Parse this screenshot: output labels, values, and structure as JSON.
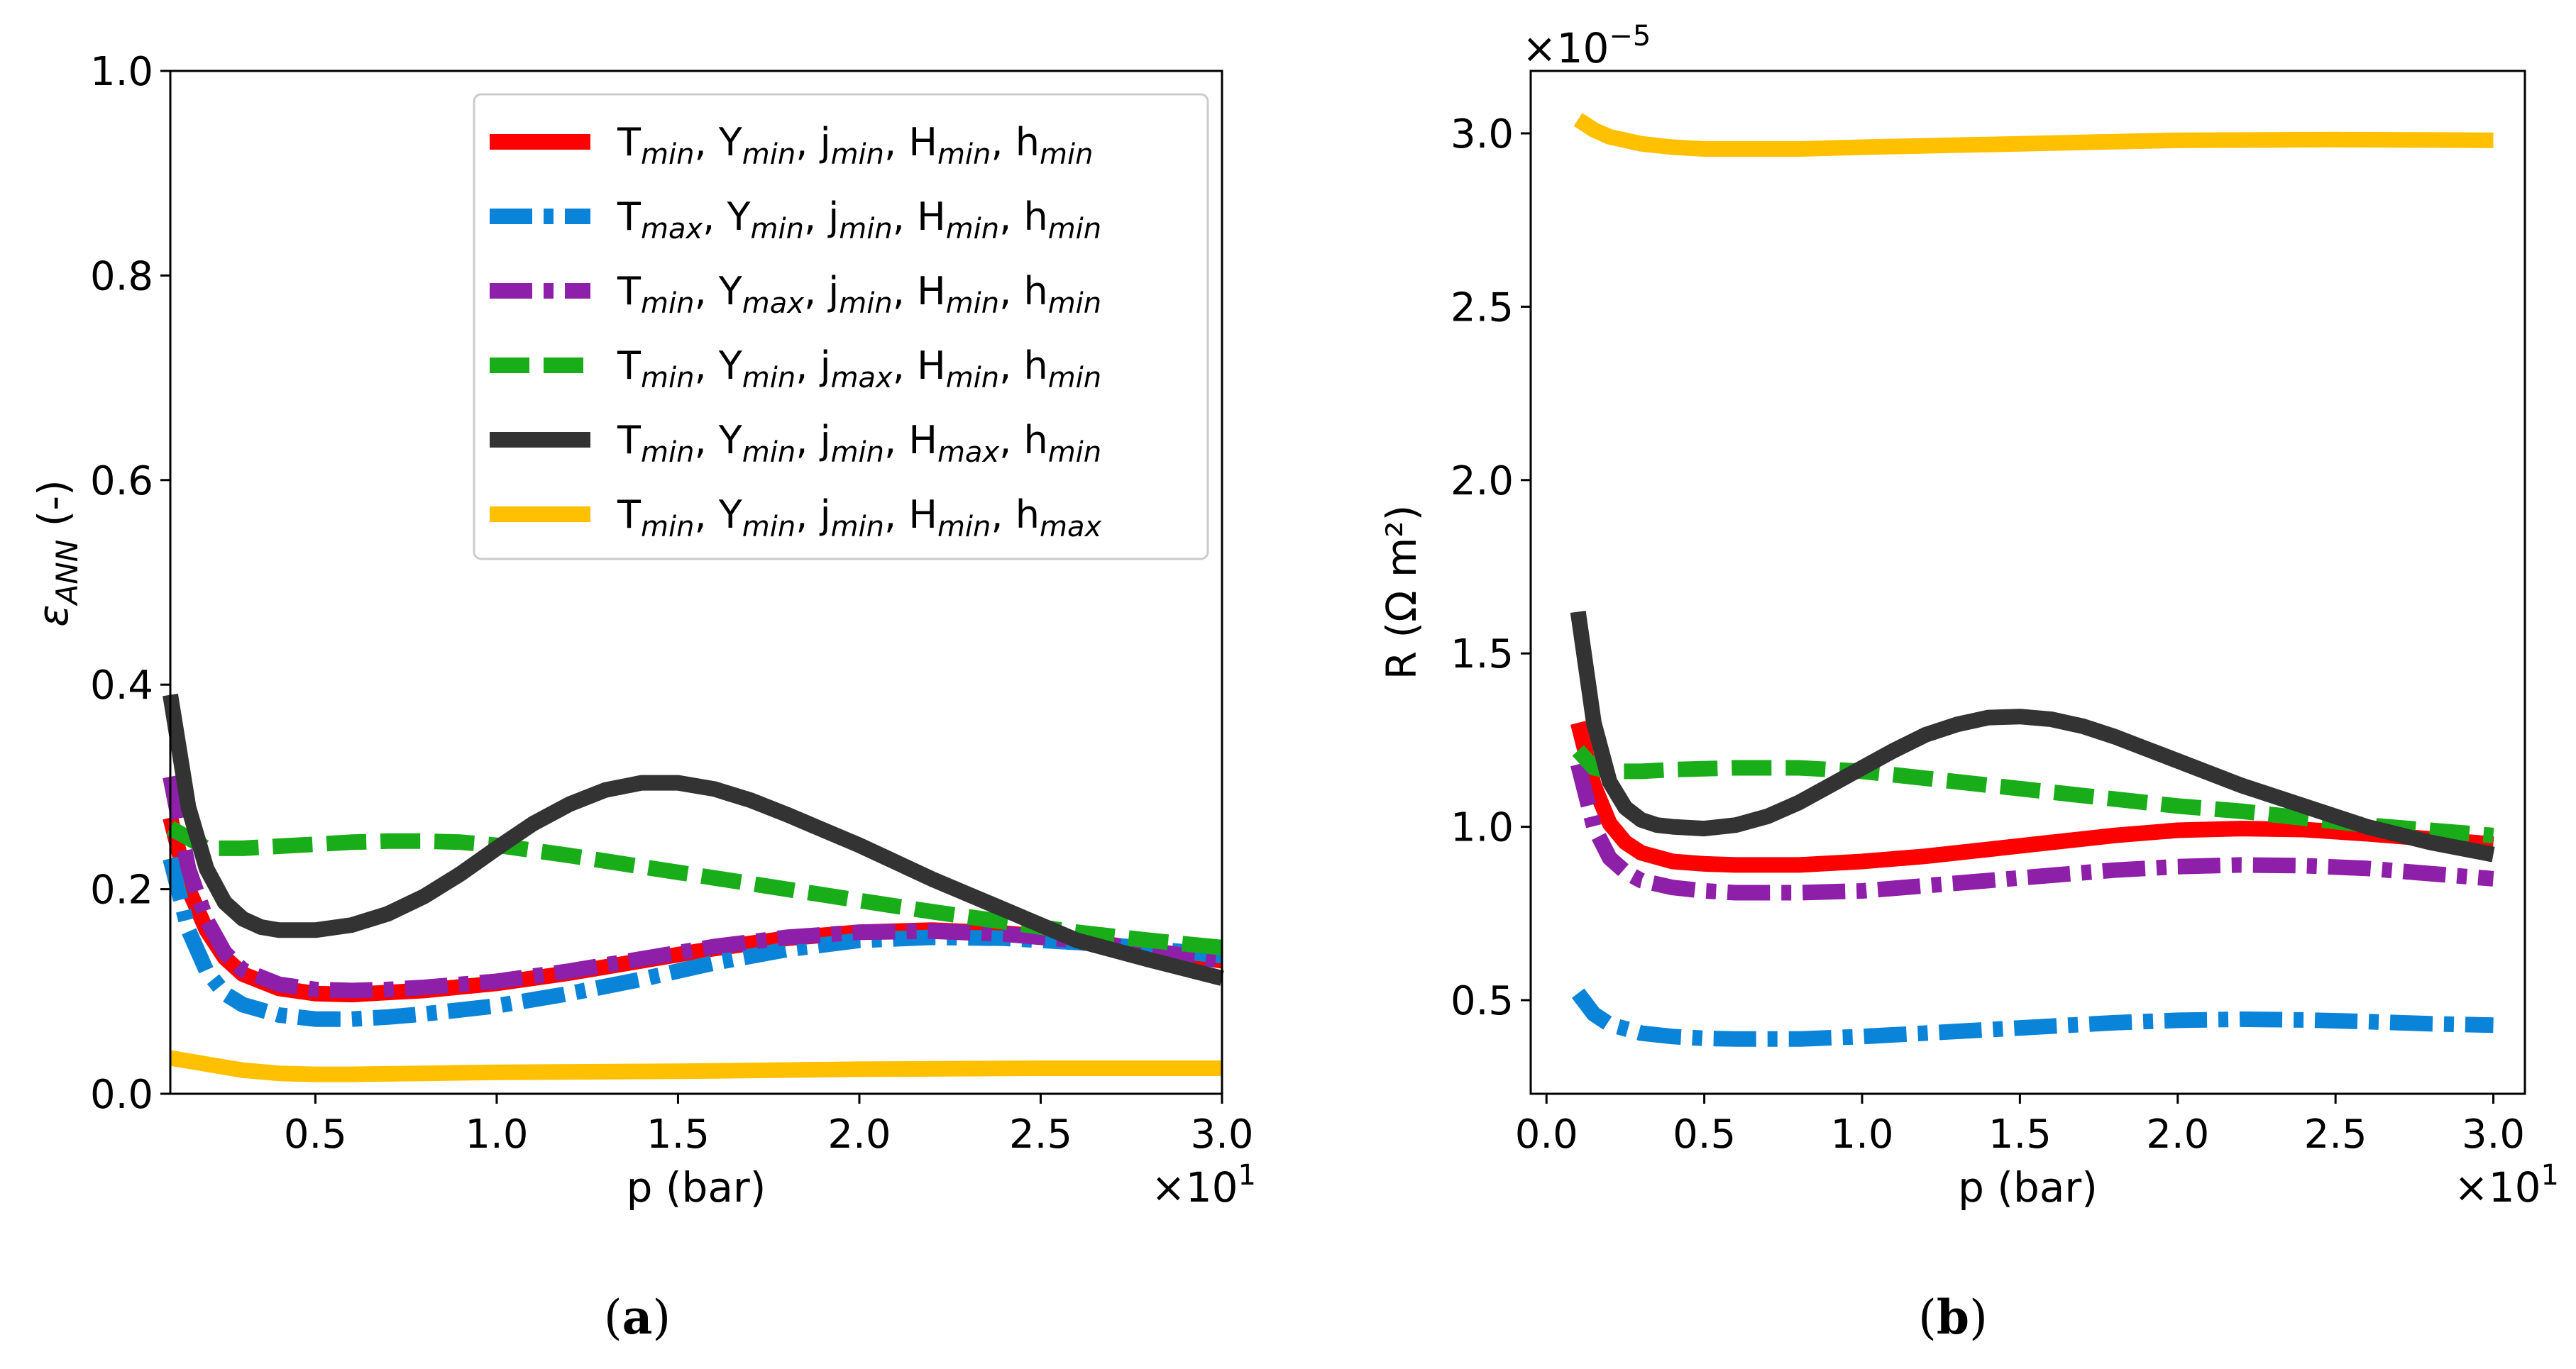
{
  "colors": {
    "red": "#ff0000",
    "blue": "#0a84d8",
    "purple": "#8e1fa8",
    "green": "#1aad1a",
    "black": "#333333",
    "yellow": "#ffc000"
  },
  "legend": [
    {
      "parts": [
        [
          "T",
          "min"
        ],
        [
          "Y",
          "min"
        ],
        [
          "j",
          "min"
        ],
        [
          "H",
          "min"
        ],
        [
          "h",
          "min"
        ]
      ],
      "color": "red",
      "style": "solid"
    },
    {
      "parts": [
        [
          "T",
          "max"
        ],
        [
          "Y",
          "min"
        ],
        [
          "j",
          "min"
        ],
        [
          "H",
          "min"
        ],
        [
          "h",
          "min"
        ]
      ],
      "color": "blue",
      "style": "dashdot"
    },
    {
      "parts": [
        [
          "T",
          "min"
        ],
        [
          "Y",
          "max"
        ],
        [
          "j",
          "min"
        ],
        [
          "H",
          "min"
        ],
        [
          "h",
          "min"
        ]
      ],
      "color": "purple",
      "style": "dashdot"
    },
    {
      "parts": [
        [
          "T",
          "min"
        ],
        [
          "Y",
          "min"
        ],
        [
          "j",
          "max"
        ],
        [
          "H",
          "min"
        ],
        [
          "h",
          "min"
        ]
      ],
      "color": "green",
      "style": "dashed"
    },
    {
      "parts": [
        [
          "T",
          "min"
        ],
        [
          "Y",
          "min"
        ],
        [
          "j",
          "min"
        ],
        [
          "H",
          "max"
        ],
        [
          "h",
          "min"
        ]
      ],
      "color": "black",
      "style": "solid"
    },
    {
      "parts": [
        [
          "T",
          "min"
        ],
        [
          "Y",
          "min"
        ],
        [
          "j",
          "min"
        ],
        [
          "H",
          "min"
        ],
        [
          "h",
          "max"
        ]
      ],
      "color": "yellow",
      "style": "solid"
    }
  ],
  "chart_data": [
    {
      "type": "line",
      "caption": "a",
      "xlabel": "p (bar)",
      "ylabel_main": "ε",
      "ylabel_sub": "ANN",
      "ylabel_suffix": " (-)",
      "x_multiplier": "×10",
      "x_multiplier_exp": "1",
      "xlim": [
        0.1,
        3.0
      ],
      "ylim": [
        0,
        1.0
      ],
      "xticks": [
        0.5,
        1.0,
        1.5,
        2.0,
        2.5,
        3.0
      ],
      "xtick_labels": [
        "0.5",
        "1.0",
        "1.5",
        "2.0",
        "2.5",
        "3.0"
      ],
      "yticks": [
        0.0,
        0.2,
        0.4,
        0.6,
        0.8,
        1.0
      ],
      "ytick_labels": [
        "0.0",
        "0.2",
        "0.4",
        "0.6",
        "0.8",
        "1.0"
      ],
      "legend_position": "top-right",
      "series": [
        {
          "name": "Tmin, Ymin, jmin, Hmin, hmin",
          "x": [
            0.1,
            0.15,
            0.2,
            0.25,
            0.3,
            0.4,
            0.5,
            0.6,
            0.7,
            0.8,
            1.0,
            1.2,
            1.4,
            1.6,
            1.8,
            2.0,
            2.2,
            2.4,
            2.6,
            2.8,
            3.0
          ],
          "values": [
            0.27,
            0.2,
            0.16,
            0.133,
            0.117,
            0.103,
            0.098,
            0.097,
            0.099,
            0.101,
            0.108,
            0.118,
            0.13,
            0.142,
            0.152,
            0.158,
            0.16,
            0.157,
            0.151,
            0.14,
            0.13
          ]
        },
        {
          "name": "Tmax, Ymin, jmin, Hmin, hmin",
          "x": [
            0.1,
            0.15,
            0.2,
            0.25,
            0.3,
            0.4,
            0.5,
            0.6,
            0.7,
            0.8,
            1.0,
            1.2,
            1.4,
            1.6,
            1.8,
            2.0,
            2.2,
            2.4,
            2.6,
            2.8,
            3.0
          ],
          "values": [
            0.23,
            0.16,
            0.12,
            0.098,
            0.087,
            0.077,
            0.073,
            0.073,
            0.075,
            0.078,
            0.086,
            0.098,
            0.112,
            0.128,
            0.141,
            0.15,
            0.153,
            0.152,
            0.148,
            0.142,
            0.135
          ]
        },
        {
          "name": "Tmin, Ymax, jmin, Hmin, hmin",
          "x": [
            0.1,
            0.15,
            0.2,
            0.25,
            0.3,
            0.4,
            0.5,
            0.6,
            0.7,
            0.8,
            1.0,
            1.2,
            1.4,
            1.6,
            1.8,
            2.0,
            2.2,
            2.4,
            2.6,
            2.8,
            3.0
          ],
          "values": [
            0.31,
            0.22,
            0.17,
            0.138,
            0.121,
            0.107,
            0.102,
            0.101,
            0.102,
            0.104,
            0.11,
            0.12,
            0.132,
            0.144,
            0.153,
            0.158,
            0.159,
            0.156,
            0.15,
            0.14,
            0.13
          ]
        },
        {
          "name": "Tmin, Ymin, jmax, Hmin, hmin",
          "x": [
            0.1,
            0.2,
            0.3,
            0.4,
            0.5,
            0.6,
            0.7,
            0.8,
            0.9,
            1.0,
            1.2,
            1.4,
            1.6,
            1.8,
            2.0,
            2.2,
            2.4,
            2.6,
            2.8,
            3.0
          ],
          "values": [
            0.26,
            0.24,
            0.24,
            0.242,
            0.244,
            0.246,
            0.247,
            0.247,
            0.246,
            0.243,
            0.233,
            0.222,
            0.211,
            0.2,
            0.189,
            0.178,
            0.168,
            0.158,
            0.15,
            0.143
          ]
        },
        {
          "name": "Tmin, Ymin, jmin, Hmax, hmin",
          "x": [
            0.1,
            0.15,
            0.2,
            0.25,
            0.3,
            0.35,
            0.4,
            0.5,
            0.6,
            0.7,
            0.8,
            0.9,
            1.0,
            1.1,
            1.2,
            1.3,
            1.4,
            1.5,
            1.6,
            1.7,
            1.8,
            1.9,
            2.0,
            2.2,
            2.4,
            2.6,
            2.8,
            3.0
          ],
          "values": [
            0.39,
            0.28,
            0.22,
            0.187,
            0.171,
            0.163,
            0.16,
            0.16,
            0.165,
            0.176,
            0.193,
            0.215,
            0.24,
            0.264,
            0.283,
            0.297,
            0.304,
            0.304,
            0.298,
            0.287,
            0.273,
            0.258,
            0.243,
            0.21,
            0.18,
            0.15,
            0.131,
            0.113
          ]
        },
        {
          "name": "Tmin, Ymin, jmin, Hmin, hmax",
          "x": [
            0.1,
            0.2,
            0.3,
            0.4,
            0.5,
            0.6,
            0.8,
            1.0,
            1.5,
            2.0,
            2.5,
            3.0
          ],
          "values": [
            0.035,
            0.029,
            0.023,
            0.02,
            0.019,
            0.019,
            0.02,
            0.021,
            0.022,
            0.024,
            0.025,
            0.025
          ]
        }
      ]
    },
    {
      "type": "line",
      "caption": "b",
      "xlabel": "p (bar)",
      "ylabel": "R (Ω m²)",
      "x_multiplier": "×10",
      "x_multiplier_exp": "1",
      "y_multiplier": "×10",
      "y_multiplier_exp": "−5",
      "xlim": [
        -0.05,
        3.1
      ],
      "ylim": [
        0.23,
        3.18
      ],
      "xticks": [
        0.0,
        0.5,
        1.0,
        1.5,
        2.0,
        2.5,
        3.0
      ],
      "xtick_labels": [
        "0.0",
        "0.5",
        "1.0",
        "1.5",
        "2.0",
        "2.5",
        "3.0"
      ],
      "yticks": [
        0.5,
        1.0,
        1.5,
        2.0,
        2.5,
        3.0
      ],
      "ytick_labels": [
        "0.5",
        "1.0",
        "1.5",
        "2.0",
        "2.5",
        "3.0"
      ],
      "series": [
        {
          "name": "Tmin, Ymin, jmin, Hmin, hmin",
          "x": [
            0.1,
            0.15,
            0.2,
            0.25,
            0.3,
            0.4,
            0.5,
            0.6,
            0.8,
            1.0,
            1.2,
            1.4,
            1.6,
            1.8,
            2.0,
            2.2,
            2.4,
            2.6,
            2.8,
            3.0
          ],
          "values": [
            1.3,
            1.12,
            1.01,
            0.955,
            0.925,
            0.9,
            0.893,
            0.89,
            0.89,
            0.9,
            0.915,
            0.935,
            0.955,
            0.975,
            0.99,
            0.995,
            0.992,
            0.98,
            0.965,
            0.95
          ]
        },
        {
          "name": "Tmax, Ymin, jmin, Hmin, hmin",
          "x": [
            0.1,
            0.15,
            0.2,
            0.3,
            0.4,
            0.5,
            0.6,
            0.8,
            1.0,
            1.2,
            1.4,
            1.6,
            1.8,
            2.0,
            2.2,
            2.4,
            2.6,
            2.8,
            3.0
          ],
          "values": [
            0.52,
            0.46,
            0.43,
            0.405,
            0.395,
            0.39,
            0.388,
            0.388,
            0.395,
            0.405,
            0.415,
            0.425,
            0.435,
            0.442,
            0.445,
            0.443,
            0.438,
            0.432,
            0.428
          ]
        },
        {
          "name": "Tmin, Ymax, jmin, Hmin, hmin",
          "x": [
            0.1,
            0.15,
            0.2,
            0.25,
            0.3,
            0.4,
            0.5,
            0.6,
            0.8,
            1.0,
            1.2,
            1.4,
            1.6,
            1.8,
            2.0,
            2.2,
            2.4,
            2.6,
            2.8,
            3.0
          ],
          "values": [
            1.18,
            1.0,
            0.91,
            0.87,
            0.845,
            0.825,
            0.815,
            0.81,
            0.81,
            0.815,
            0.83,
            0.845,
            0.86,
            0.875,
            0.885,
            0.89,
            0.888,
            0.88,
            0.865,
            0.85
          ]
        },
        {
          "name": "Tmin, Ymin, jmax, Hmin, hmin",
          "x": [
            0.1,
            0.15,
            0.2,
            0.3,
            0.4,
            0.6,
            0.8,
            1.0,
            1.2,
            1.4,
            1.6,
            1.8,
            2.0,
            2.2,
            2.4,
            2.6,
            2.8,
            3.0
          ],
          "values": [
            1.22,
            1.17,
            1.16,
            1.16,
            1.165,
            1.17,
            1.17,
            1.16,
            1.14,
            1.12,
            1.1,
            1.08,
            1.06,
            1.045,
            1.025,
            1.005,
            0.99,
            0.975
          ]
        },
        {
          "name": "Tmin, Ymin, jmin, Hmax, hmin",
          "x": [
            0.1,
            0.15,
            0.2,
            0.25,
            0.3,
            0.35,
            0.4,
            0.5,
            0.6,
            0.7,
            0.8,
            0.9,
            1.0,
            1.1,
            1.2,
            1.3,
            1.4,
            1.5,
            1.6,
            1.7,
            1.8,
            1.9,
            2.0,
            2.2,
            2.4,
            2.6,
            2.8,
            3.0
          ],
          "values": [
            1.62,
            1.3,
            1.13,
            1.055,
            1.02,
            1.005,
            1.0,
            0.995,
            1.005,
            1.03,
            1.07,
            1.12,
            1.17,
            1.22,
            1.265,
            1.295,
            1.315,
            1.318,
            1.31,
            1.29,
            1.26,
            1.225,
            1.19,
            1.12,
            1.06,
            1.0,
            0.955,
            0.92
          ]
        },
        {
          "name": "Tmin, Ymin, jmin, Hmin, hmax",
          "x": [
            0.1,
            0.15,
            0.2,
            0.3,
            0.4,
            0.5,
            0.6,
            0.8,
            1.0,
            1.5,
            2.0,
            2.5,
            3.0
          ],
          "values": [
            3.04,
            3.01,
            2.99,
            2.97,
            2.96,
            2.955,
            2.955,
            2.955,
            2.96,
            2.97,
            2.98,
            2.982,
            2.98
          ]
        }
      ]
    }
  ]
}
